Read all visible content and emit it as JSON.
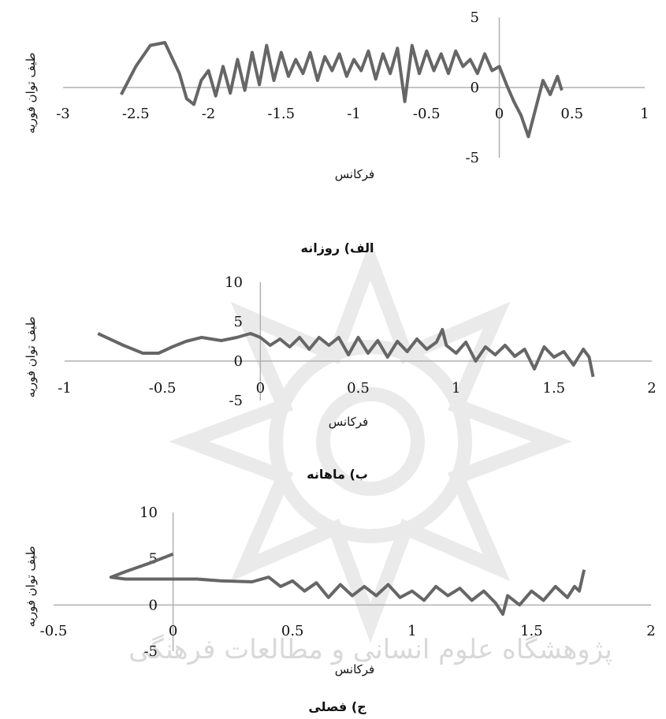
{
  "chart_data": [
    {
      "type": "line",
      "caption": "الف) روزانه",
      "xlabel": "فرکانس",
      "ylabel": "طیف توان فوریه",
      "xlim": [
        -3,
        1
      ],
      "ylim": [
        -5,
        5
      ],
      "xticks": [
        "-3",
        "-2.5",
        "-2",
        "-1.5",
        "-1",
        "-0.5",
        "0",
        "0.5",
        "1"
      ],
      "yticks": [
        "5",
        "0",
        "-5"
      ],
      "grid": false,
      "legend": "none",
      "line_color": "#666666",
      "series": [
        {
          "x": [
            -2.6,
            -2.5,
            -2.4,
            -2.3,
            -2.2,
            -2.15,
            -2.1,
            -2.05,
            -2.0,
            -1.95,
            -1.9,
            -1.85,
            -1.8,
            -1.75,
            -1.7,
            -1.65,
            -1.6,
            -1.55,
            -1.5,
            -1.45,
            -1.4,
            -1.35,
            -1.3,
            -1.25,
            -1.2,
            -1.15,
            -1.1,
            -1.05,
            -1.0,
            -0.95,
            -0.9,
            -0.85,
            -0.8,
            -0.75,
            -0.7,
            -0.65,
            -0.6,
            -0.55,
            -0.5,
            -0.45,
            -0.4,
            -0.35,
            -0.3,
            -0.25,
            -0.2,
            -0.15,
            -0.1,
            -0.05,
            0.0,
            0.05,
            0.1,
            0.15,
            0.2,
            0.25,
            0.3,
            0.35,
            0.4,
            0.43
          ],
          "y": [
            -0.5,
            1.5,
            3.0,
            3.2,
            1.0,
            -0.8,
            -1.2,
            0.5,
            1.2,
            -0.6,
            1.5,
            -0.4,
            2.0,
            -0.2,
            2.5,
            0.2,
            3.0,
            0.5,
            2.5,
            0.8,
            2.0,
            1.0,
            2.5,
            0.5,
            2.2,
            1.2,
            2.4,
            0.8,
            2.0,
            1.2,
            2.6,
            0.6,
            2.4,
            1.0,
            2.8,
            -1.0,
            3.0,
            1.0,
            2.6,
            1.2,
            2.4,
            1.0,
            2.6,
            1.5,
            2.0,
            1.0,
            2.4,
            1.2,
            1.5,
            0.2,
            -1.0,
            -2.0,
            -3.5,
            -1.5,
            0.5,
            -0.5,
            0.8,
            -0.2
          ]
        }
      ]
    },
    {
      "type": "line",
      "caption": "ب) ماهانه",
      "xlabel": "فرکانس",
      "ylabel": "طیف توان فوریه",
      "xlim": [
        -1,
        2
      ],
      "ylim": [
        -5,
        10
      ],
      "xticks": [
        "-1",
        "-0.5",
        "0",
        "0.5",
        "1",
        "1.5",
        "2"
      ],
      "yticks": [
        "10",
        "5",
        "0",
        "-5"
      ],
      "grid": false,
      "legend": "none",
      "line_color": "#666666",
      "series": [
        {
          "x": [
            -0.83,
            -0.7,
            -0.6,
            -0.52,
            -0.45,
            -0.38,
            -0.3,
            -0.2,
            -0.12,
            -0.05,
            0.0,
            0.05,
            0.1,
            0.15,
            0.2,
            0.25,
            0.3,
            0.35,
            0.4,
            0.45,
            0.5,
            0.55,
            0.6,
            0.65,
            0.7,
            0.75,
            0.8,
            0.85,
            0.9,
            0.93,
            0.95,
            1.0,
            1.05,
            1.1,
            1.15,
            1.2,
            1.25,
            1.3,
            1.35,
            1.4,
            1.45,
            1.5,
            1.55,
            1.6,
            1.65,
            1.68,
            1.7
          ],
          "y": [
            3.5,
            2.0,
            1.0,
            1.0,
            1.8,
            2.5,
            3.0,
            2.6,
            3.0,
            3.5,
            3.0,
            2.0,
            2.8,
            1.8,
            3.0,
            1.5,
            3.0,
            2.0,
            3.0,
            0.8,
            3.0,
            1.0,
            2.6,
            0.5,
            2.5,
            1.2,
            2.8,
            1.5,
            2.4,
            4.0,
            2.0,
            1.0,
            2.4,
            0.0,
            1.8,
            0.8,
            2.0,
            0.6,
            1.5,
            -1.0,
            1.8,
            0.5,
            1.2,
            -0.5,
            1.5,
            0.5,
            -2.0
          ]
        }
      ]
    },
    {
      "type": "line",
      "caption": "ج) فصلی",
      "xlabel": "فرکانس",
      "ylabel": "طیف توان فوریه",
      "xlim": [
        -0.5,
        2
      ],
      "ylim": [
        -5,
        10
      ],
      "xticks": [
        "-0.5",
        "0",
        "0.5",
        "1",
        "1.5",
        "2"
      ],
      "yticks": [
        "10",
        "5",
        "0",
        "-5"
      ],
      "grid": false,
      "legend": "none",
      "line_color": "#666666",
      "series": [
        {
          "x": [
            0.0,
            -0.1,
            -0.2,
            -0.26,
            -0.2,
            -0.1,
            0.0,
            0.1,
            0.2,
            0.33,
            0.4,
            0.45,
            0.5,
            0.55,
            0.6,
            0.65,
            0.7,
            0.75,
            0.8,
            0.85,
            0.9,
            0.95,
            1.0,
            1.05,
            1.1,
            1.15,
            1.2,
            1.25,
            1.3,
            1.35,
            1.38,
            1.4,
            1.45,
            1.5,
            1.55,
            1.6,
            1.65,
            1.68,
            1.7,
            1.72
          ],
          "y": [
            5.5,
            4.5,
            3.6,
            3.0,
            2.8,
            2.8,
            2.8,
            2.8,
            2.6,
            2.5,
            3.0,
            2.0,
            2.6,
            1.5,
            2.4,
            0.8,
            2.2,
            1.0,
            2.0,
            1.0,
            2.2,
            0.8,
            1.5,
            0.5,
            2.0,
            1.0,
            1.8,
            0.5,
            1.5,
            0.2,
            -1.0,
            1.0,
            0.0,
            1.5,
            0.5,
            2.0,
            0.8,
            2.0,
            1.5,
            3.8
          ]
        }
      ]
    }
  ]
}
